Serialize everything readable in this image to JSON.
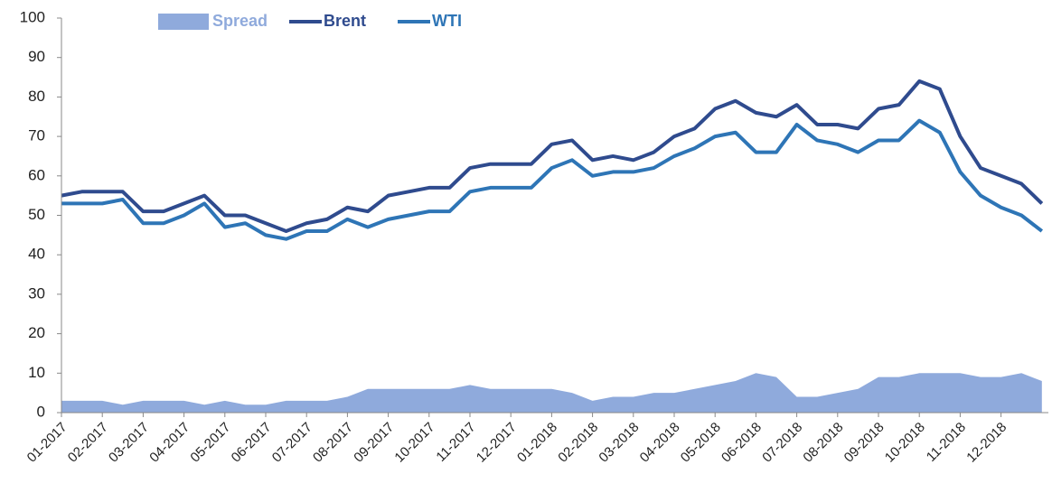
{
  "chart_data": {
    "type": "line",
    "legend": "top",
    "grid": false,
    "categories": [
      "01-2017",
      null,
      "02-2017",
      null,
      "03-2017",
      null,
      "04-2017",
      null,
      "05-2017",
      null,
      "06-2017",
      null,
      "07-2017",
      null,
      "08-2017",
      null,
      "09-2017",
      null,
      "10-2017",
      null,
      "11-2017",
      null,
      "12-2017",
      null,
      "01-2018",
      null,
      "02-2018",
      null,
      "03-2018",
      null,
      "04-2018",
      null,
      "05-2018",
      null,
      "06-2018",
      null,
      "07-2018",
      null,
      "08-2018",
      null,
      "09-2018",
      null,
      "10-2018",
      null,
      "11-2018",
      null,
      "12-2018",
      null,
      null
    ],
    "series": [
      {
        "name": "Spread",
        "type": "area",
        "color": "#8faadc",
        "values": [
          3,
          3,
          3,
          2,
          3,
          3,
          3,
          2,
          3,
          2,
          2,
          3,
          3,
          3,
          4,
          6,
          6,
          6,
          6,
          6,
          7,
          6,
          6,
          6,
          6,
          5,
          3,
          4,
          4,
          5,
          5,
          6,
          7,
          8,
          10,
          9,
          4,
          4,
          5,
          6,
          9,
          9,
          10,
          10,
          10,
          9,
          9,
          10,
          8
        ]
      },
      {
        "name": "Brent",
        "type": "line",
        "color": "#2f4b8e",
        "values": [
          55,
          56,
          56,
          56,
          51,
          51,
          53,
          55,
          50,
          50,
          48,
          46,
          48,
          49,
          52,
          51,
          55,
          56,
          57,
          57,
          62,
          63,
          63,
          63,
          68,
          69,
          64,
          65,
          64,
          66,
          70,
          72,
          77,
          79,
          76,
          75,
          78,
          73,
          73,
          72,
          77,
          78,
          84,
          82,
          70,
          62,
          60,
          58,
          53
        ]
      },
      {
        "name": "WTI",
        "type": "line",
        "color": "#2e75b6",
        "values": [
          53,
          53,
          53,
          54,
          48,
          48,
          50,
          53,
          47,
          48,
          45,
          44,
          46,
          46,
          49,
          47,
          49,
          50,
          51,
          51,
          56,
          57,
          57,
          57,
          62,
          64,
          60,
          61,
          61,
          62,
          65,
          67,
          70,
          71,
          66,
          66,
          73,
          69,
          68,
          66,
          69,
          69,
          74,
          71,
          61,
          55,
          52,
          50,
          46
        ]
      }
    ],
    "ylim": [
      0,
      100
    ],
    "yticks": [
      0,
      10,
      20,
      30,
      40,
      50,
      60,
      70,
      80,
      90,
      100
    ]
  }
}
